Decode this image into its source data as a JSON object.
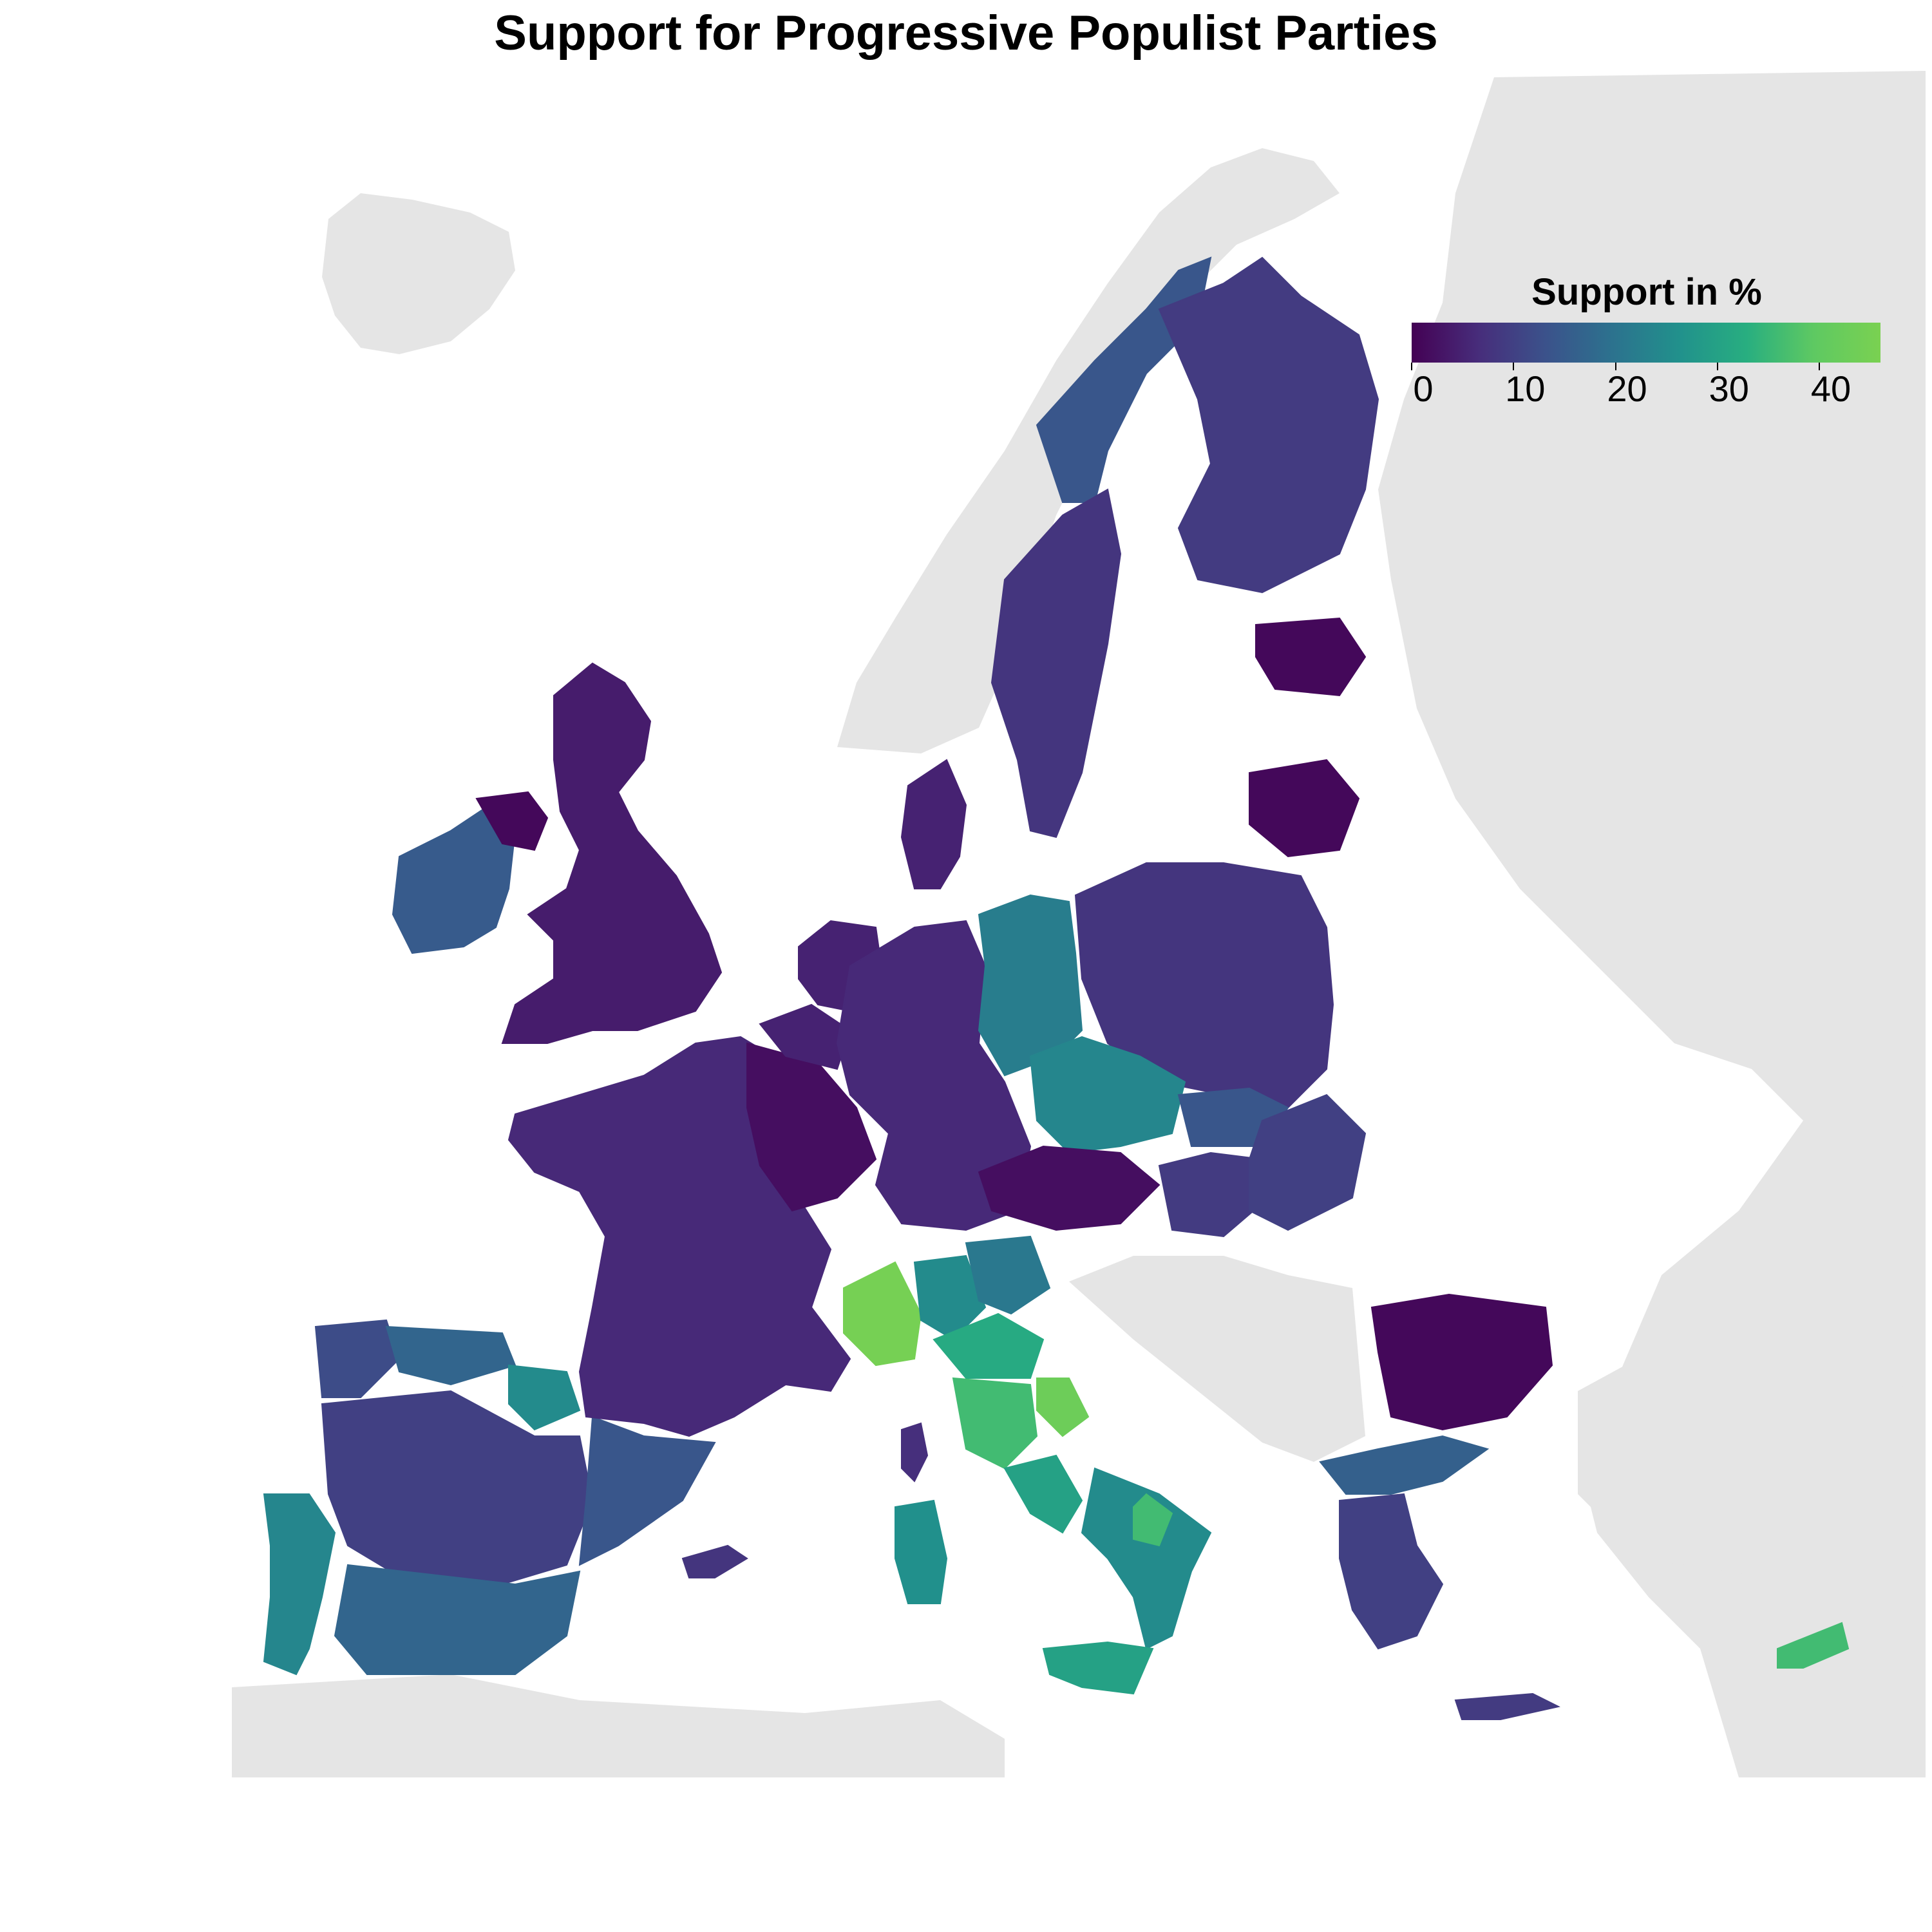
{
  "title": "Support for Progressive Populist Parties",
  "legend": {
    "title": "Support in %",
    "ticks": [
      "0",
      "10",
      "20",
      "30",
      "40"
    ],
    "tick_values": [
      0,
      10,
      20,
      30,
      40
    ],
    "range": [
      0,
      46
    ],
    "gradient": [
      "#440154",
      "#472d7b",
      "#3b528b",
      "#2c728e",
      "#21918c",
      "#28ae80",
      "#5ec962",
      "#7ad151"
    ]
  },
  "colors": {
    "background": "#ffffff",
    "non_eu_land": "#e5e5e5",
    "scale_low": "#440154",
    "scale_high": "#7ad151"
  },
  "chart_data": {
    "type": "heatmap",
    "title": "Support for Progressive Populist Parties",
    "legend_title": "Support in %",
    "value_range": [
      0,
      46
    ],
    "regions": [
      {
        "name": "Iceland",
        "value": null
      },
      {
        "name": "Norway",
        "value": null
      },
      {
        "name": "Russia",
        "value": null
      },
      {
        "name": "Ireland",
        "value": 15
      },
      {
        "name": "Northern Ireland",
        "value": 1
      },
      {
        "name": "Great Britain",
        "value": 4
      },
      {
        "name": "Portugal",
        "value": 24
      },
      {
        "name": "Spain (north-west)",
        "value": 12
      },
      {
        "name": "Spain (north)",
        "value": 17
      },
      {
        "name": "Spain (Navarre)",
        "value": 25
      },
      {
        "name": "Spain (centre)",
        "value": 10
      },
      {
        "name": "Spain (east)",
        "value": 14
      },
      {
        "name": "Spain (south)",
        "value": 17
      },
      {
        "name": "Balearic Islands",
        "value": 8
      },
      {
        "name": "France",
        "value": 6
      },
      {
        "name": "France (north-east)",
        "value": 2
      },
      {
        "name": "Corsica",
        "value": 7
      },
      {
        "name": "Belgium",
        "value": 5
      },
      {
        "name": "Netherlands",
        "value": 5
      },
      {
        "name": "Germany (west)",
        "value": 6
      },
      {
        "name": "Germany (east)",
        "value": 22
      },
      {
        "name": "Denmark",
        "value": 5
      },
      {
        "name": "Sweden (north)",
        "value": 14
      },
      {
        "name": "Sweden (south)",
        "value": 8
      },
      {
        "name": "Finland",
        "value": 9
      },
      {
        "name": "Estonia",
        "value": 1
      },
      {
        "name": "Lithuania",
        "value": 1
      },
      {
        "name": "Poland",
        "value": 8
      },
      {
        "name": "Czech Republic",
        "value": 24
      },
      {
        "name": "Slovakia",
        "value": 14
      },
      {
        "name": "Austria",
        "value": 2
      },
      {
        "name": "Hungary",
        "value": 9
      },
      {
        "name": "Romania",
        "value": 10
      },
      {
        "name": "Bulgaria",
        "value": 1
      },
      {
        "name": "Greece (north)",
        "value": 16
      },
      {
        "name": "Greece (centre)",
        "value": 10
      },
      {
        "name": "Crete",
        "value": 9
      },
      {
        "name": "Cyprus",
        "value": 36
      },
      {
        "name": "Italy (Piedmont)",
        "value": 45
      },
      {
        "name": "Italy (Lombardy)",
        "value": 25
      },
      {
        "name": "Italy (north-east)",
        "value": 21
      },
      {
        "name": "Italy (Emilia-Romagna)",
        "value": 32
      },
      {
        "name": "Italy (Marche)",
        "value": 43
      },
      {
        "name": "Italy (Tuscany)",
        "value": 36
      },
      {
        "name": "Italy (Lazio)",
        "value": 30
      },
      {
        "name": "Italy (south)",
        "value": 25
      },
      {
        "name": "Italy (Campania)",
        "value": 36
      },
      {
        "name": "Sicily",
        "value": 30
      },
      {
        "name": "Sardinia",
        "value": 26
      }
    ]
  }
}
